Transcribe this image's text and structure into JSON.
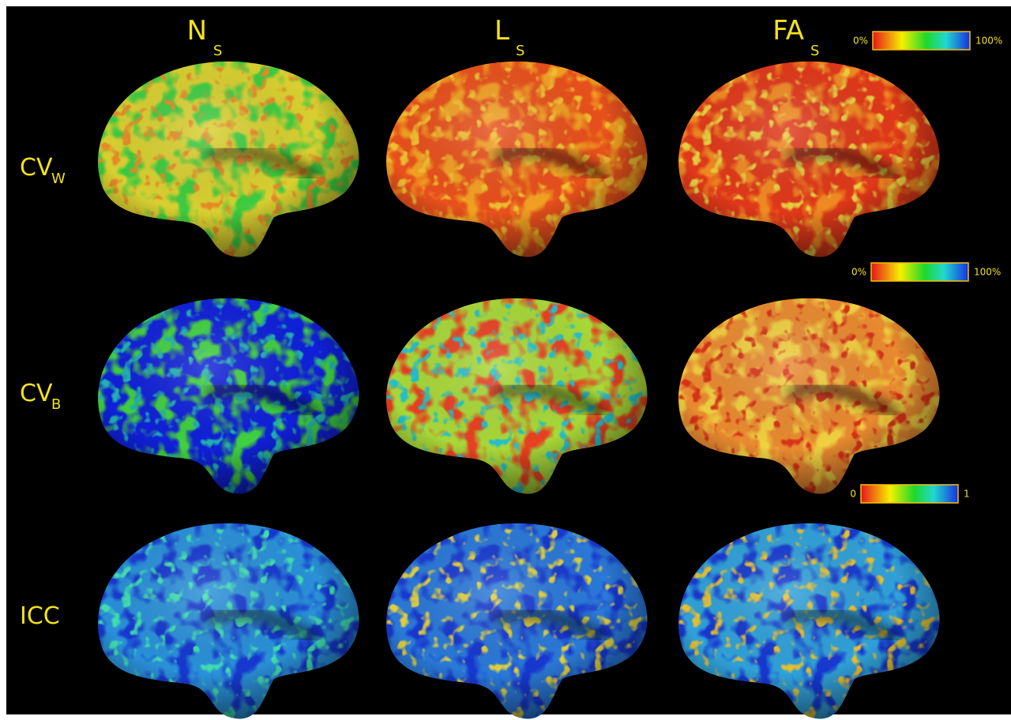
{
  "columns": [
    {
      "main": "N",
      "sub": "S"
    },
    {
      "main": "L",
      "sub": "S"
    },
    {
      "main": "FA",
      "sub": "S"
    }
  ],
  "rows": [
    {
      "main": "CV",
      "sub": "W"
    },
    {
      "main": "CV",
      "sub": "B"
    },
    {
      "main": "ICC"
    }
  ],
  "colorbars": [
    {
      "min": "0%",
      "max": "100%"
    },
    {
      "min": "0%",
      "max": "100%"
    },
    {
      "min": "0",
      "max": "1"
    }
  ]
}
